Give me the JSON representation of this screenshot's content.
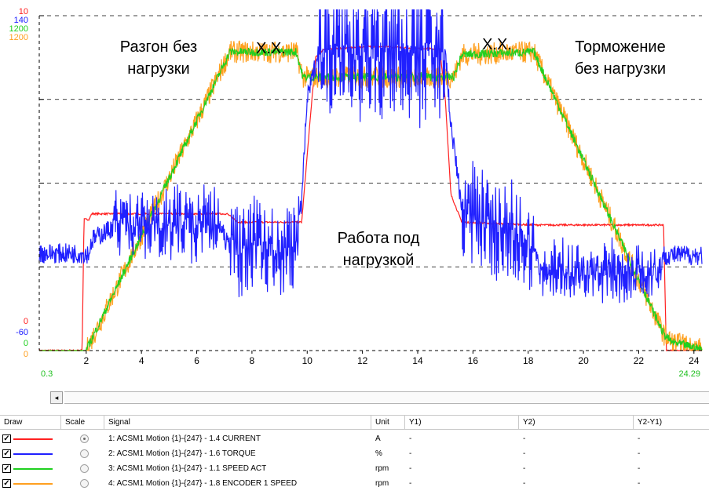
{
  "chart_data": {
    "type": "line",
    "title": "",
    "xlabel": "",
    "ylabel": "",
    "xlim": [
      0.3,
      24.29
    ],
    "x_ticks": [
      2,
      4,
      6,
      8,
      10,
      12,
      14,
      16,
      18,
      20,
      22,
      24
    ],
    "x_tick_labels": [
      "2",
      "4",
      "6",
      "8",
      "10",
      "12",
      "14",
      "16",
      "18",
      "20",
      "22",
      "24"
    ],
    "x_start_label": "0.3",
    "x_end_label": "24.29",
    "y_scales": [
      {
        "color": "#ff2020",
        "max": "10",
        "min": "0"
      },
      {
        "color": "#2020ff",
        "max": "140",
        "min": "-60"
      },
      {
        "color": "#20d020",
        "max": "1200",
        "min": "0"
      },
      {
        "color": "#ffa020",
        "max": "1200",
        "min": "0"
      }
    ],
    "grid": true,
    "annotations": [
      {
        "text": "Разгон без\nнагрузки"
      },
      {
        "text": "Х.Х."
      },
      {
        "text": "Х.Х."
      },
      {
        "text": "Торможение\nбез нагрузки"
      },
      {
        "text": "Работа под\nнагрузкой"
      }
    ],
    "series": [
      {
        "name": "1: ACSM1 Motion {1}-{247} - 1.4 CURRENT",
        "color": "#ff2020",
        "noise": 0.03,
        "points": [
          [
            0.3,
            0
          ],
          [
            1.85,
            0
          ],
          [
            1.92,
            4.7
          ],
          [
            2.1,
            4.7
          ],
          [
            2.2,
            4.9
          ],
          [
            7.1,
            4.9
          ],
          [
            7.5,
            4.6
          ],
          [
            9.8,
            4.6
          ],
          [
            10.0,
            7.0
          ],
          [
            10.3,
            10.5
          ],
          [
            10.6,
            10.8
          ],
          [
            12.5,
            10.9
          ],
          [
            14.8,
            10.8
          ],
          [
            15.0,
            9.0
          ],
          [
            15.2,
            5.6
          ],
          [
            15.6,
            4.6
          ],
          [
            18.2,
            4.5
          ],
          [
            22.9,
            4.5
          ],
          [
            23.0,
            0
          ],
          [
            24.29,
            0
          ]
        ]
      },
      {
        "name": "2: ACSM1 Motion {1}-{247} - 1.6 TORQUE",
        "color": "#2020ff",
        "noise": 6,
        "points": [
          [
            0.3,
            -2
          ],
          [
            2.1,
            -2
          ],
          [
            2.2,
            6
          ],
          [
            3.0,
            14
          ],
          [
            6.8,
            16
          ],
          [
            7.1,
            4
          ],
          [
            9.6,
            -1
          ],
          [
            9.8,
            30
          ],
          [
            10.0,
            90
          ],
          [
            10.4,
            118
          ],
          [
            15.0,
            118
          ],
          [
            15.2,
            75
          ],
          [
            15.6,
            26
          ],
          [
            18.2,
            3
          ],
          [
            18.4,
            -13
          ],
          [
            22.8,
            -13
          ],
          [
            22.9,
            -3
          ],
          [
            24.29,
            -3
          ]
        ],
        "spikes": [
          [
            3.0,
            6.8,
            14
          ],
          [
            7.2,
            9.7,
            20
          ],
          [
            10.4,
            15.0,
            30
          ],
          [
            15.6,
            18.2,
            22
          ],
          [
            18.4,
            22.8,
            12
          ]
        ]
      },
      {
        "name": "3: ACSM1 Motion {1}-{247} - 1.1 SPEED ACT",
        "color": "#20d020",
        "noise": 15,
        "points": [
          [
            0.3,
            0
          ],
          [
            2.0,
            0
          ],
          [
            7.2,
            1070
          ],
          [
            9.6,
            1070
          ],
          [
            9.85,
            980
          ],
          [
            15.3,
            980
          ],
          [
            15.6,
            1060
          ],
          [
            18.2,
            1070
          ],
          [
            22.9,
            60
          ],
          [
            23.2,
            30
          ],
          [
            24.29,
            5
          ]
        ]
      },
      {
        "name": "4: ACSM1 Motion {1}-{247} - 1.8 ENCODER 1 SPEED",
        "color": "#ffa020",
        "noise": 40,
        "points": [
          [
            0.3,
            0
          ],
          [
            2.0,
            0
          ],
          [
            7.2,
            1070
          ],
          [
            9.6,
            1070
          ],
          [
            9.85,
            980
          ],
          [
            15.3,
            980
          ],
          [
            15.6,
            1060
          ],
          [
            18.2,
            1070
          ],
          [
            22.9,
            60
          ],
          [
            23.2,
            30
          ],
          [
            24.29,
            5
          ]
        ]
      }
    ]
  },
  "scrollbar": {
    "left_arrow": "◂"
  },
  "legend_table": {
    "headers": {
      "draw": "Draw",
      "scale": "Scale",
      "signal": "Signal",
      "unit": "Unit",
      "y1": "Y1)",
      "y2": "Y2)",
      "y2y1": "Y2-Y1)"
    },
    "rows": [
      {
        "check": "✓",
        "color": "#ff2020",
        "scale_selected": true,
        "signal": "1: ACSM1 Motion {1}-{247} - 1.4 CURRENT",
        "unit": "A",
        "y1": "-",
        "y2": "-",
        "y2y1": "-"
      },
      {
        "check": "✓",
        "color": "#2020ff",
        "scale_selected": false,
        "signal": "2: ACSM1 Motion {1}-{247} - 1.6 TORQUE",
        "unit": "%",
        "y1": "-",
        "y2": "-",
        "y2y1": "-"
      },
      {
        "check": "✓",
        "color": "#20d020",
        "scale_selected": false,
        "signal": "3: ACSM1 Motion {1}-{247} - 1.1 SPEED ACT",
        "unit": "rpm",
        "y1": "-",
        "y2": "-",
        "y2y1": "-"
      },
      {
        "check": "✓",
        "color": "#ffa020",
        "scale_selected": false,
        "signal": "4: ACSM1 Motion {1}-{247} - 1.8 ENCODER 1 SPEED",
        "unit": "rpm",
        "y1": "-",
        "y2": "-",
        "y2y1": "-"
      }
    ]
  }
}
